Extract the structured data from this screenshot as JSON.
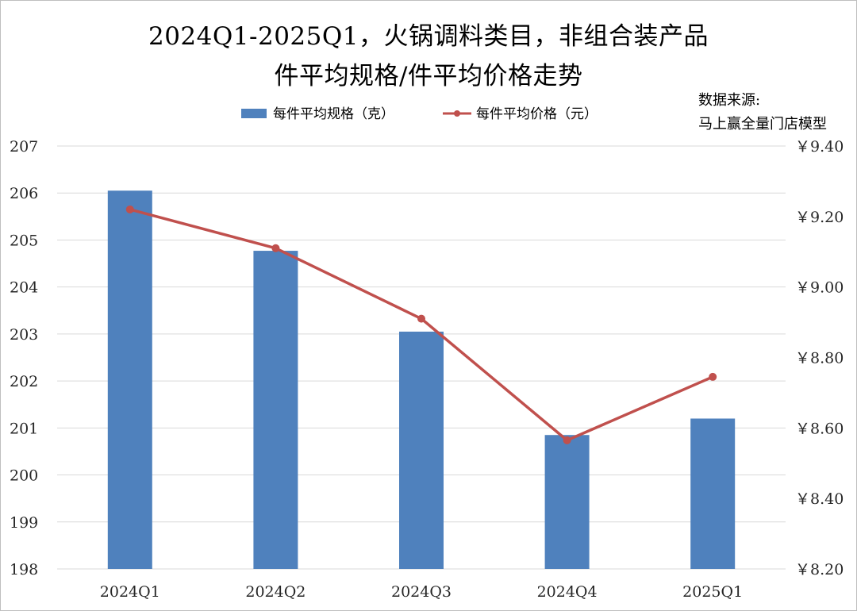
{
  "source_label": "数据来源:",
  "source_name": "马上赢全量门店模型",
  "chart_data": {
    "type": "bar",
    "title_line1": "2024Q1-2025Q1，火锅调料类目，非组合装产品",
    "title_line2": "件平均规格/件平均价格走势",
    "categories": [
      "2024Q1",
      "2024Q2",
      "2024Q3",
      "2024Q4",
      "2025Q1"
    ],
    "series": [
      {
        "name": "每件平均规格（克）",
        "type": "bar",
        "axis": "left",
        "color": "#4f81bd",
        "values": [
          206.05,
          204.77,
          203.05,
          200.85,
          201.2
        ]
      },
      {
        "name": "每件平均价格（元）",
        "type": "line",
        "axis": "right",
        "color": "#c0504d",
        "values": [
          9.22,
          9.11,
          8.91,
          8.565,
          8.745
        ]
      }
    ],
    "y_left": {
      "min": 198,
      "max": 207,
      "ticks": [
        "207",
        "206",
        "205",
        "204",
        "203",
        "202",
        "201",
        "200",
        "199",
        "198"
      ]
    },
    "y_right": {
      "min": 8.2,
      "max": 9.4,
      "ticks": [
        "￥9.40",
        "￥9.20",
        "￥9.00",
        "￥8.80",
        "￥8.60",
        "￥8.40",
        "￥8.20"
      ]
    },
    "grid": true,
    "legend_position": "top"
  }
}
